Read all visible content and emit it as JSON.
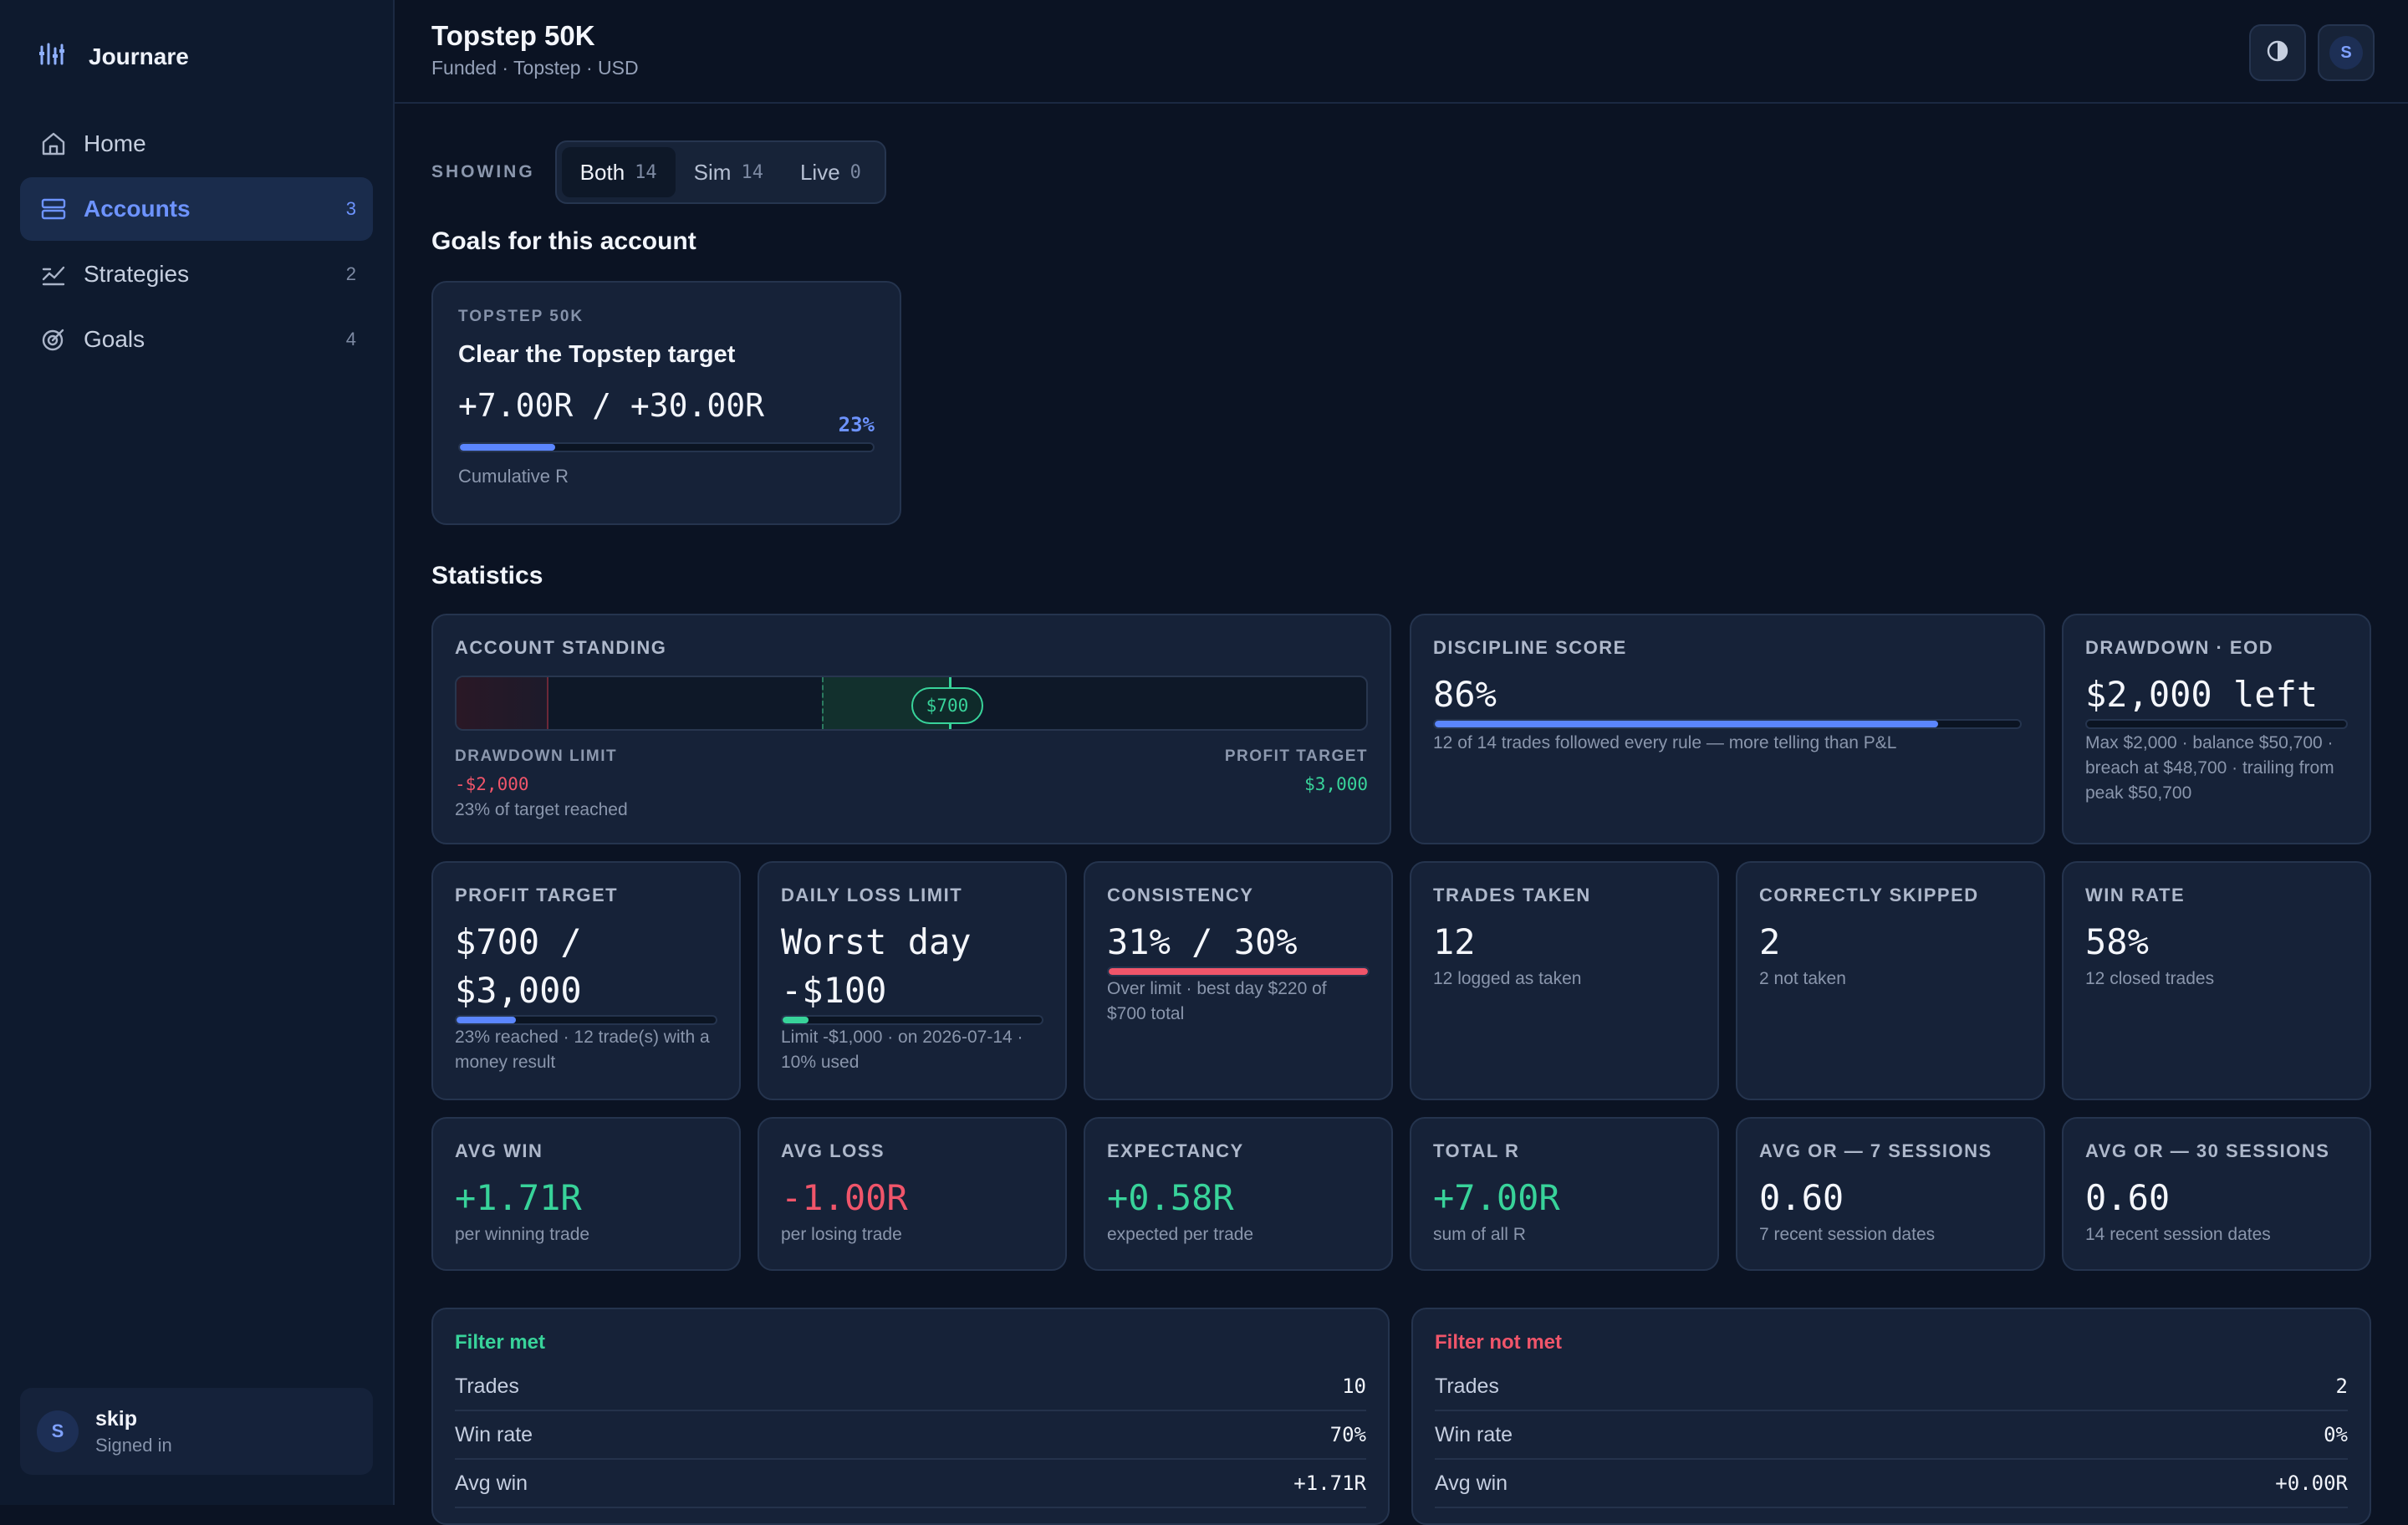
{
  "app": {
    "name": "Journare"
  },
  "sidebar": {
    "items": [
      {
        "label": "Home",
        "count": ""
      },
      {
        "label": "Accounts",
        "count": "3"
      },
      {
        "label": "Strategies",
        "count": "2"
      },
      {
        "label": "Goals",
        "count": "4"
      }
    ],
    "user": {
      "initial": "S",
      "name": "skip",
      "status": "Signed in"
    }
  },
  "header": {
    "title": "Topstep 50K",
    "subtitle": "Funded · Topstep · USD",
    "avatar_initial": "S"
  },
  "showing": {
    "label": "SHOWING",
    "options": [
      {
        "label": "Both",
        "count": "14"
      },
      {
        "label": "Sim",
        "count": "14"
      },
      {
        "label": "Live",
        "count": "0"
      }
    ],
    "selected": "Both"
  },
  "goals": {
    "section_title": "Goals for this account",
    "card": {
      "kicker": "TOPSTEP 50K",
      "name": "Clear the Topstep target",
      "value": "+7.00R / +30.00R",
      "percent": "23%",
      "progress": 0.23,
      "footer": "Cumulative R"
    }
  },
  "statistics": {
    "section_title": "Statistics",
    "standing": {
      "label": "ACCOUNT STANDING",
      "current_chip": "$700",
      "drawdown_label": "DRAWDOWN LIMIT",
      "drawdown_value": "-$2,000",
      "progress_text": "23% of target reached",
      "target_label": "PROFIT TARGET",
      "target_value": "$3,000",
      "min": -2000,
      "max": 3000,
      "current": 700
    },
    "discipline": {
      "label": "DISCIPLINE SCORE",
      "value": "86%",
      "progress": 0.86,
      "sub": "12 of 14 trades followed every rule — more telling than P&L"
    },
    "drawdown": {
      "label": "DRAWDOWN · EOD",
      "value": "$2,000 left",
      "progress": 0.0,
      "sub": "Max $2,000 · balance $50,700 · breach at $48,700 · trailing from peak $50,700"
    },
    "row2": [
      {
        "label": "PROFIT TARGET",
        "value": "$700 / $3,000",
        "progress": 0.23,
        "bar_color": "#5b86ff",
        "sub": "23% reached · 12 trade(s) with a money result"
      },
      {
        "label": "DAILY LOSS LIMIT",
        "value": "Worst day -$100",
        "progress": 0.1,
        "bar_color": "#38d39a",
        "sub": "Limit -$1,000 · on 2026-07-14 · 10% used"
      },
      {
        "label": "CONSISTENCY",
        "value": "31% / 30%",
        "progress": 1.0,
        "bar_color": "#f0556a",
        "sub": "Over limit · best day $220 of $700 total"
      },
      {
        "label": "TRADES TAKEN",
        "value": "12",
        "sub": "12 logged as taken"
      },
      {
        "label": "CORRECTLY SKIPPED",
        "value": "2",
        "sub": "2 not taken"
      },
      {
        "label": "WIN RATE",
        "value": "58%",
        "sub": "12 closed trades"
      }
    ],
    "row3": [
      {
        "label": "AVG WIN",
        "value": "+1.71R",
        "tone": "green",
        "sub": "per winning trade"
      },
      {
        "label": "AVG LOSS",
        "value": "-1.00R",
        "tone": "red",
        "sub": "per losing trade"
      },
      {
        "label": "EXPECTANCY",
        "value": "+0.58R",
        "tone": "green",
        "sub": "expected per trade"
      },
      {
        "label": "TOTAL R",
        "value": "+7.00R",
        "tone": "green",
        "sub": "sum of all R"
      },
      {
        "label": "AVG OR — 7 SESSIONS",
        "value": "0.60",
        "tone": "",
        "sub": "7 recent session dates"
      },
      {
        "label": "AVG OR — 30 SESSIONS",
        "value": "0.60",
        "tone": "",
        "sub": "14 recent session dates"
      }
    ]
  },
  "filters": {
    "met": {
      "title": "Filter met",
      "rows": [
        {
          "label": "Trades",
          "value": "10"
        },
        {
          "label": "Win rate",
          "value": "70%"
        },
        {
          "label": "Avg win",
          "value": "+1.71R"
        }
      ]
    },
    "not_met": {
      "title": "Filter not met",
      "rows": [
        {
          "label": "Trades",
          "value": "2"
        },
        {
          "label": "Win rate",
          "value": "0%"
        },
        {
          "label": "Avg win",
          "value": "+0.00R"
        }
      ]
    }
  },
  "colors": {
    "accent": "#5b86ff",
    "positive": "#38d39a",
    "negative": "#f0556a"
  }
}
